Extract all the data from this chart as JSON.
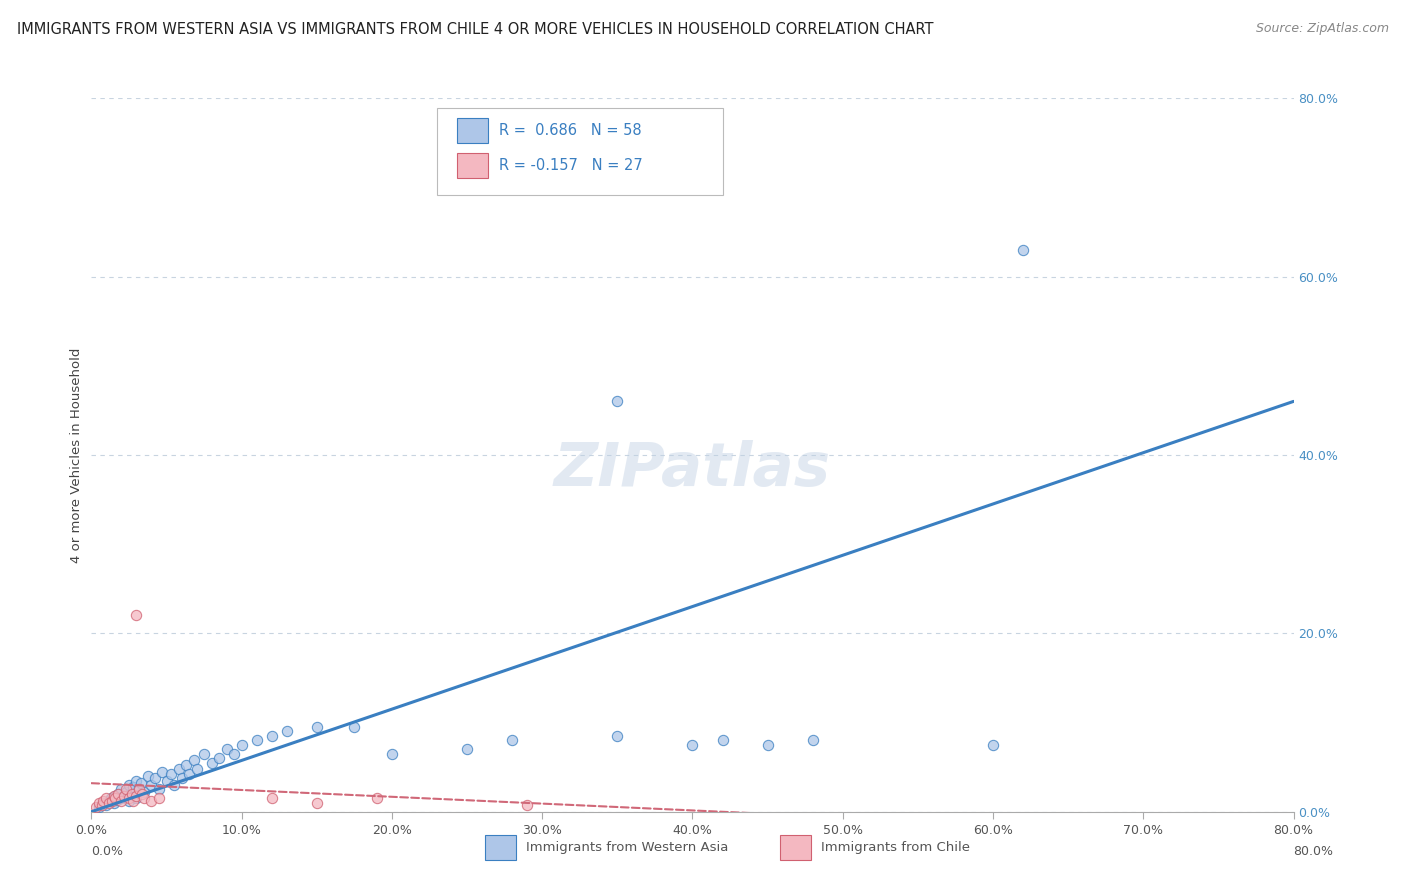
{
  "title": "IMMIGRANTS FROM WESTERN ASIA VS IMMIGRANTS FROM CHILE 4 OR MORE VEHICLES IN HOUSEHOLD CORRELATION CHART",
  "source": "Source: ZipAtlas.com",
  "ylabel": "4 or more Vehicles in Household",
  "xmin": 0.0,
  "xmax": 0.8,
  "ymin": 0.0,
  "ymax": 0.8,
  "legend1_label": "R =  0.686   N = 58",
  "legend2_label": "R = -0.157   N = 27",
  "legend1_fill": "#aec6e8",
  "legend1_edge": "#3a7fc1",
  "legend2_fill": "#f4b8c1",
  "legend2_edge": "#d06070",
  "line1_color": "#3a7fc1",
  "line2_color": "#d06878",
  "watermark": "ZIPatlas",
  "background_color": "#ffffff",
  "grid_color": "#c8d4e0",
  "scatter1_color_face": "#aec6e8",
  "scatter1_color_edge": "#3a7fc1",
  "scatter2_color_face": "#f4b8c1",
  "scatter2_color_edge": "#d06070",
  "trendline1_x0": 0.0,
  "trendline1_y0": 0.0,
  "trendline1_x1": 0.8,
  "trendline1_y1": 0.46,
  "trendline2_x0": 0.0,
  "trendline2_y0": 0.032,
  "trendline2_x1": 0.55,
  "trendline2_y1": -0.01,
  "scatter1_x": [
    0.005,
    0.008,
    0.01,
    0.012,
    0.013,
    0.015,
    0.016,
    0.017,
    0.018,
    0.02,
    0.02,
    0.022,
    0.023,
    0.025,
    0.025,
    0.027,
    0.028,
    0.03,
    0.03,
    0.032,
    0.033,
    0.035,
    0.038,
    0.04,
    0.042,
    0.045,
    0.047,
    0.05,
    0.053,
    0.055,
    0.058,
    0.06,
    0.063,
    0.065,
    0.068,
    0.07,
    0.075,
    0.08,
    0.085,
    0.09,
    0.095,
    0.1,
    0.11,
    0.12,
    0.13,
    0.15,
    0.175,
    0.2,
    0.25,
    0.28,
    0.35,
    0.4,
    0.42,
    0.45,
    0.48,
    0.6,
    0.35,
    0.62
  ],
  "scatter1_y": [
    0.005,
    0.01,
    0.008,
    0.012,
    0.015,
    0.01,
    0.018,
    0.013,
    0.02,
    0.015,
    0.025,
    0.018,
    0.022,
    0.012,
    0.03,
    0.02,
    0.028,
    0.015,
    0.035,
    0.025,
    0.032,
    0.022,
    0.04,
    0.03,
    0.038,
    0.025,
    0.045,
    0.035,
    0.042,
    0.03,
    0.048,
    0.038,
    0.052,
    0.042,
    0.058,
    0.048,
    0.065,
    0.055,
    0.06,
    0.07,
    0.065,
    0.075,
    0.08,
    0.085,
    0.09,
    0.095,
    0.095,
    0.065,
    0.07,
    0.08,
    0.085,
    0.075,
    0.08,
    0.075,
    0.08,
    0.075,
    0.46,
    0.63
  ],
  "scatter2_x": [
    0.003,
    0.005,
    0.007,
    0.008,
    0.01,
    0.012,
    0.014,
    0.015,
    0.016,
    0.018,
    0.02,
    0.022,
    0.023,
    0.025,
    0.027,
    0.028,
    0.03,
    0.032,
    0.034,
    0.035,
    0.03,
    0.04,
    0.045,
    0.12,
    0.15,
    0.19,
    0.29
  ],
  "scatter2_y": [
    0.005,
    0.01,
    0.008,
    0.012,
    0.015,
    0.01,
    0.012,
    0.018,
    0.015,
    0.02,
    0.012,
    0.018,
    0.025,
    0.015,
    0.02,
    0.012,
    0.018,
    0.025,
    0.02,
    0.015,
    0.22,
    0.012,
    0.015,
    0.015,
    0.01,
    0.015,
    0.008
  ]
}
